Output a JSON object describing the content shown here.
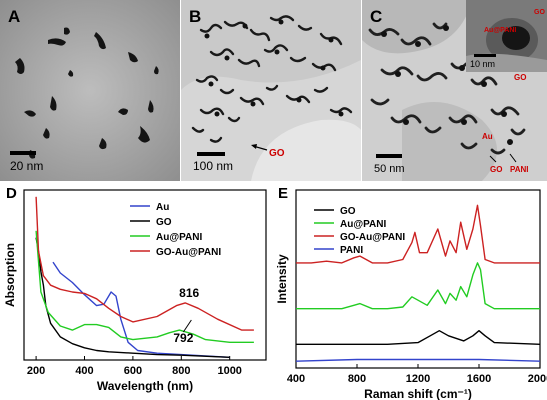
{
  "panels": [
    {
      "letter": "A",
      "scale_label": "20 nm"
    },
    {
      "letter": "B",
      "scale_label": "100 nm",
      "annotations": [
        "GO"
      ]
    },
    {
      "letter": "C",
      "scale_label": "50 nm",
      "annotations": [
        "Au",
        "GO",
        "PANI",
        "GO"
      ],
      "inset": {
        "scale_label": "10 nm",
        "annotations": [
          "Au@PANI",
          "GO"
        ]
      }
    }
  ],
  "colors": {
    "au": "#3344cc",
    "go": "#000000",
    "au_pani": "#22cc22",
    "go_au_pani": "#cc2222",
    "pani": "#3344cc",
    "red_text": "#cc0000"
  },
  "chart_data": [
    {
      "panel": "D",
      "type": "line",
      "xlabel": "Wavelength (nm)",
      "ylabel": "Absorption",
      "xlim": [
        150,
        1150
      ],
      "xticks": [
        200,
        400,
        600,
        800,
        1000
      ],
      "y_ticks_shown": false,
      "legend_position": "top-right",
      "annotations": [
        {
          "text": "816",
          "x": 816
        },
        {
          "text": "792",
          "x": 792
        }
      ],
      "series": [
        {
          "name": "Au",
          "color": "#3344cc",
          "x": [
            270,
            300,
            350,
            400,
            450,
            480,
            510,
            530,
            550,
            580,
            620,
            700,
            800,
            900,
            1000
          ],
          "y": [
            0.72,
            0.64,
            0.57,
            0.48,
            0.4,
            0.41,
            0.5,
            0.47,
            0.3,
            0.13,
            0.07,
            0.05,
            0.04,
            0.03,
            0.02
          ]
        },
        {
          "name": "GO",
          "color": "#000000",
          "x": [
            200,
            210,
            220,
            230,
            240,
            260,
            300,
            350,
            400,
            450,
            500,
            600,
            700,
            800,
            1000
          ],
          "y": [
            0.9,
            0.8,
            0.65,
            0.55,
            0.4,
            0.27,
            0.17,
            0.12,
            0.09,
            0.07,
            0.06,
            0.05,
            0.04,
            0.035,
            0.02
          ]
        },
        {
          "name": "Au@PANI",
          "color": "#22cc22",
          "x": [
            200,
            220,
            250,
            300,
            350,
            400,
            450,
            500,
            550,
            600,
            700,
            750,
            792,
            850,
            900,
            1000,
            1100
          ],
          "y": [
            0.95,
            0.5,
            0.35,
            0.25,
            0.22,
            0.26,
            0.26,
            0.24,
            0.17,
            0.15,
            0.17,
            0.2,
            0.22,
            0.19,
            0.15,
            0.13,
            0.13
          ]
        },
        {
          "name": "GO-Au@PANI",
          "color": "#cc2222",
          "x": [
            200,
            210,
            230,
            260,
            300,
            350,
            400,
            450,
            500,
            550,
            600,
            700,
            780,
            816,
            870,
            950,
            1050,
            1100
          ],
          "y": [
            1.2,
            0.8,
            0.62,
            0.55,
            0.52,
            0.5,
            0.49,
            0.45,
            0.38,
            0.32,
            0.28,
            0.32,
            0.4,
            0.42,
            0.38,
            0.3,
            0.22,
            0.22
          ]
        }
      ]
    },
    {
      "panel": "E",
      "type": "line",
      "xlabel": "Raman shift (cm⁻¹)",
      "ylabel": "Intensity",
      "xlim": [
        400,
        2000
      ],
      "xticks": [
        400,
        800,
        1200,
        1600,
        2000
      ],
      "y_ticks_shown": false,
      "legend_position": "top-left",
      "series": [
        {
          "name": "GO",
          "color": "#000000",
          "x": [
            400,
            1000,
            1200,
            1280,
            1340,
            1400,
            1500,
            1560,
            1600,
            1640,
            1700,
            2000
          ],
          "y": [
            0.14,
            0.14,
            0.15,
            0.19,
            0.22,
            0.19,
            0.16,
            0.19,
            0.22,
            0.19,
            0.15,
            0.14
          ]
        },
        {
          "name": "Au@PANI",
          "color": "#22cc22",
          "x": [
            400,
            500,
            600,
            700,
            780,
            820,
            900,
            1000,
            1100,
            1160,
            1200,
            1260,
            1330,
            1380,
            1410,
            1450,
            1480,
            1520,
            1560,
            1590,
            1610,
            1640,
            1700,
            1800,
            2000
          ],
          "y": [
            0.35,
            0.35,
            0.35,
            0.35,
            0.37,
            0.38,
            0.35,
            0.35,
            0.36,
            0.42,
            0.4,
            0.37,
            0.46,
            0.38,
            0.44,
            0.4,
            0.48,
            0.42,
            0.55,
            0.62,
            0.58,
            0.38,
            0.35,
            0.35,
            0.35
          ]
        },
        {
          "name": "GO-Au@PANI",
          "color": "#cc2222",
          "x": [
            400,
            500,
            600,
            700,
            780,
            820,
            900,
            1000,
            1100,
            1160,
            1180,
            1210,
            1260,
            1330,
            1380,
            1410,
            1450,
            1480,
            1520,
            1560,
            1590,
            1610,
            1640,
            1700,
            1800,
            2000
          ],
          "y": [
            0.62,
            0.62,
            0.63,
            0.62,
            0.65,
            0.66,
            0.62,
            0.62,
            0.64,
            0.74,
            0.8,
            0.68,
            0.68,
            0.82,
            0.66,
            0.75,
            0.68,
            0.86,
            0.7,
            0.82,
            0.96,
            0.84,
            0.64,
            0.62,
            0.62,
            0.62
          ]
        },
        {
          "name": "PANI",
          "color": "#3344cc",
          "x": [
            400,
            800,
            1200,
            1600,
            2000
          ],
          "y": [
            0.04,
            0.05,
            0.05,
            0.05,
            0.04
          ]
        }
      ]
    }
  ]
}
